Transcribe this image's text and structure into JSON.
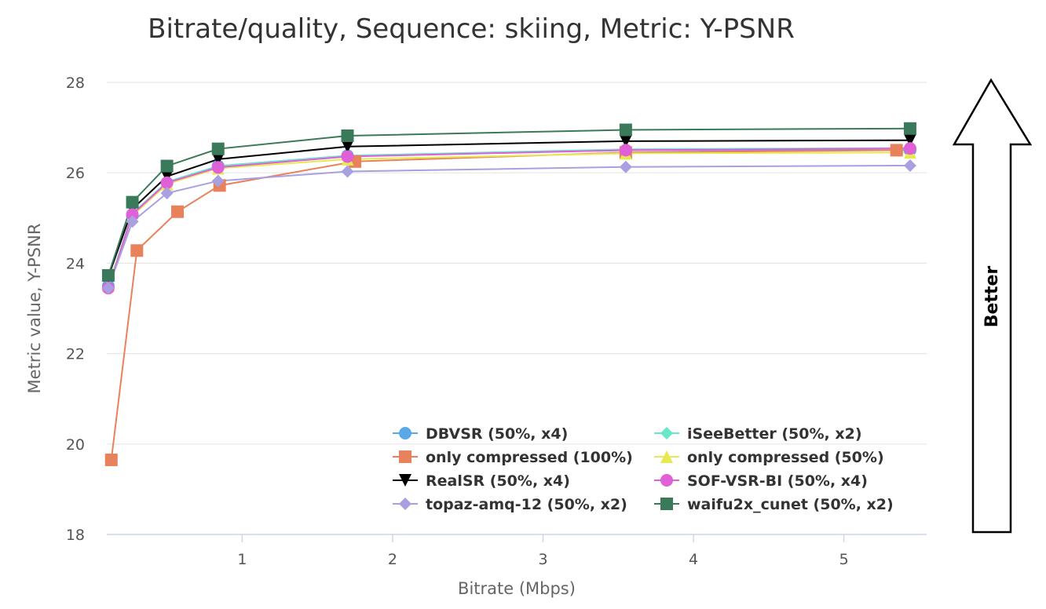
{
  "chart_data": {
    "type": "line",
    "title": "Bitrate/quality, Sequence: skiing, Metric: Y-PSNR",
    "xlabel": "Bitrate (Mbps)",
    "ylabel": "Metric value, Y-PSNR",
    "xlim": [
      0.1,
      5.55
    ],
    "ylim": [
      18,
      28
    ],
    "xticks": [
      "1",
      "2",
      "3",
      "4",
      "5"
    ],
    "yticks": [
      "18",
      "20",
      "22",
      "24",
      "26",
      "28"
    ],
    "grid": "horizontal",
    "legend_position": "bottom-center",
    "annotation": "Better",
    "series": [
      {
        "name": "DBVSR (50%, x4)",
        "color": "#5aa9e6",
        "marker": "circle",
        "x": [
          0.11,
          0.27,
          0.5,
          0.84,
          1.7,
          3.55,
          5.44
        ],
        "y": [
          23.5,
          25.05,
          25.78,
          26.15,
          26.38,
          26.5,
          26.5
        ]
      },
      {
        "name": "iSeeBetter (50%, x2)",
        "color": "#64e8c8",
        "marker": "diamond",
        "x": [
          0.11,
          0.27,
          0.5,
          0.84,
          1.7,
          3.55,
          5.44
        ],
        "y": [
          23.5,
          25.1,
          25.8,
          26.15,
          26.38,
          26.52,
          26.55
        ]
      },
      {
        "name": "only compressed (100%)",
        "color": "#e8825c",
        "marker": "square",
        "x": [
          0.13,
          0.3,
          0.57,
          0.85,
          1.75,
          3.55,
          5.35
        ],
        "y": [
          19.65,
          24.28,
          25.14,
          25.72,
          26.25,
          26.45,
          26.5
        ]
      },
      {
        "name": "only compressed (50%)",
        "color": "#e8e850",
        "marker": "triangle",
        "x": [
          0.11,
          0.27,
          0.5,
          0.84,
          1.7,
          3.55,
          5.44
        ],
        "y": [
          23.5,
          25.05,
          25.75,
          26.1,
          26.3,
          26.43,
          26.45
        ]
      },
      {
        "name": "RealSR (50%, x4)",
        "color": "#000000",
        "marker": "triangle-down",
        "x": [
          0.11,
          0.27,
          0.5,
          0.84,
          1.7,
          3.55,
          5.44
        ],
        "y": [
          23.7,
          25.2,
          25.92,
          26.3,
          26.58,
          26.7,
          26.72
        ]
      },
      {
        "name": "SOF-VSR-BI (50%, x4)",
        "color": "#e060d8",
        "marker": "circle",
        "x": [
          0.11,
          0.27,
          0.5,
          0.84,
          1.7,
          3.55,
          5.44
        ],
        "y": [
          23.45,
          25.08,
          25.78,
          26.12,
          26.36,
          26.5,
          26.54
        ]
      },
      {
        "name": "topaz-amq-12 (50%, x2)",
        "color": "#a8a0e0",
        "marker": "diamond",
        "x": [
          0.11,
          0.27,
          0.5,
          0.84,
          1.7,
          3.55,
          5.44
        ],
        "y": [
          23.45,
          24.92,
          25.55,
          25.82,
          26.03,
          26.13,
          26.16
        ]
      },
      {
        "name": "waifu2x_cunet (50%, x2)",
        "color": "#3a7a5a",
        "marker": "square",
        "x": [
          0.11,
          0.27,
          0.5,
          0.84,
          1.7,
          3.55,
          5.44
        ],
        "y": [
          23.73,
          25.35,
          26.15,
          26.53,
          26.82,
          26.95,
          26.98
        ]
      }
    ]
  }
}
